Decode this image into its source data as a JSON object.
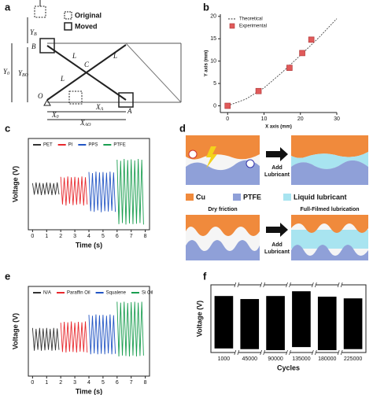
{
  "panel_labels": [
    "a",
    "b",
    "c",
    "d",
    "e",
    "f"
  ],
  "diagram_a": {
    "legend": [
      "Original",
      "Moved"
    ],
    "labels": [
      {
        "text": "Y",
        "sub": "B"
      },
      {
        "text": "B"
      },
      {
        "text": "L"
      },
      {
        "text": "C"
      },
      {
        "text": "L"
      },
      {
        "text": "L"
      },
      {
        "text": "Y",
        "sub": "0"
      },
      {
        "text": "Y",
        "sub": "BO"
      },
      {
        "text": "O"
      },
      {
        "text": "X",
        "sub": "0"
      },
      {
        "text": "X",
        "sub": "A"
      },
      {
        "text": "X",
        "sub": "AO"
      },
      {
        "text": "A"
      }
    ]
  },
  "chart_data": [
    {
      "type": "scatter",
      "x_label": "X axis (mm)",
      "y_label": "Y axis (mm)",
      "xlim": [
        -2,
        30
      ],
      "ylim": [
        -1.5,
        20.5
      ],
      "xticks": [
        0,
        10,
        20,
        30
      ],
      "yticks": [
        0,
        5,
        10,
        15,
        20
      ],
      "legend": "upper left",
      "series": [
        {
          "name": "Theoretical",
          "color": "#333333",
          "line": "dashed",
          "x": [
            0,
            5,
            10,
            15,
            20,
            25,
            30
          ],
          "values": [
            0,
            1.5,
            4,
            7.5,
            11.3,
            15.2,
            19.5
          ]
        },
        {
          "name": "Experimental",
          "color": "#e05a5a",
          "marker": "square",
          "x": [
            0,
            8.5,
            17,
            20.5,
            23
          ],
          "values": [
            0,
            3.3,
            8.5,
            11.8,
            14.8
          ]
        }
      ]
    },
    {
      "type": "line",
      "x_label": "Time (s)",
      "y_label": "Voltage (V)",
      "xlim": [
        -0.3,
        8.3
      ],
      "ylim": [
        -1.1,
        1.35
      ],
      "xticks": [
        0,
        1,
        2,
        3,
        4,
        5,
        6,
        7,
        8
      ],
      "legend": "upper center",
      "series": [
        {
          "name": "PET",
          "color": "#333333",
          "x": [
            0,
            0.125,
            0.25,
            0.375,
            0.5,
            0.625,
            0.75,
            0.875,
            1,
            1.125,
            1.25,
            1.375,
            1.5,
            1.625,
            1.75,
            1.875
          ],
          "values": [
            0.15,
            -0.16,
            0.17,
            -0.15,
            0.16,
            -0.17,
            0.15,
            -0.16,
            0.17,
            -0.15,
            0.16,
            -0.17,
            0.15,
            -0.16,
            0.17,
            -0.15
          ]
        },
        {
          "name": "PI",
          "color": "#e8282d",
          "x": [
            2,
            2.125,
            2.25,
            2.375,
            2.5,
            2.625,
            2.75,
            2.875,
            3,
            3.125,
            3.25,
            3.375,
            3.5,
            3.625,
            3.75,
            3.875
          ],
          "values": [
            0.32,
            -0.42,
            0.3,
            -0.45,
            0.33,
            -0.4,
            0.31,
            -0.44,
            0.32,
            -0.43,
            0.3,
            -0.41,
            0.33,
            -0.45,
            0.31,
            -0.42
          ]
        },
        {
          "name": "PPS",
          "color": "#2255c4",
          "x": [
            4,
            4.125,
            4.25,
            4.375,
            4.5,
            4.625,
            4.75,
            4.875,
            5,
            5.125,
            5.25,
            5.375,
            5.5,
            5.625,
            5.75,
            5.875
          ],
          "values": [
            0.45,
            -0.6,
            0.42,
            -0.62,
            0.46,
            -0.58,
            0.44,
            -0.63,
            0.45,
            -0.6,
            0.43,
            -0.61,
            0.46,
            -0.59,
            0.44,
            -0.62
          ]
        },
        {
          "name": "PTFE",
          "color": "#1a9e50",
          "x": [
            6,
            6.125,
            6.25,
            6.375,
            6.5,
            6.625,
            6.75,
            6.875,
            7,
            7.125,
            7.25,
            7.375,
            7.5,
            7.625,
            7.75,
            7.875
          ],
          "values": [
            0.78,
            -0.95,
            0.75,
            -0.92,
            0.8,
            -0.96,
            0.77,
            -0.93,
            0.79,
            -0.95,
            0.76,
            -0.94,
            0.8,
            -0.92,
            0.78,
            -0.96
          ]
        }
      ]
    },
    {
      "type": "line",
      "x_label": "Time (s)",
      "y_label": "Voltage (V)",
      "xlim": [
        -0.3,
        8.3
      ],
      "ylim": [
        -0.8,
        1.25
      ],
      "xticks": [
        0,
        1,
        2,
        3,
        4,
        5,
        6,
        7,
        8
      ],
      "legend": "upper center",
      "series": [
        {
          "name": "N/A",
          "color": "#333333",
          "x": [
            0,
            0.125,
            0.25,
            0.375,
            0.5,
            0.625,
            0.75,
            0.875,
            1,
            1.125,
            1.25,
            1.375,
            1.5,
            1.625,
            1.75,
            1.875
          ],
          "values": [
            0.3,
            -0.22,
            0.28,
            -0.2,
            0.3,
            -0.22,
            0.29,
            -0.21,
            0.3,
            -0.2,
            0.28,
            -0.22,
            0.3,
            -0.21,
            0.29,
            -0.2
          ]
        },
        {
          "name": "Paraffin Oil",
          "color": "#e8282d",
          "x": [
            2,
            2.125,
            2.25,
            2.375,
            2.5,
            2.625,
            2.75,
            2.875,
            3,
            3.125,
            3.25,
            3.375,
            3.5,
            3.625,
            3.75,
            3.875
          ],
          "values": [
            0.42,
            -0.25,
            0.44,
            -0.26,
            0.43,
            -0.24,
            0.45,
            -0.25,
            0.42,
            -0.26,
            0.44,
            -0.24,
            0.43,
            -0.25,
            0.45,
            -0.26
          ]
        },
        {
          "name": "Squalene",
          "color": "#2255c4",
          "x": [
            4,
            4.125,
            4.25,
            4.375,
            4.5,
            4.625,
            4.75,
            4.875,
            5,
            5.125,
            5.25,
            5.375,
            5.5,
            5.625,
            5.75,
            5.875
          ],
          "values": [
            0.6,
            -0.3,
            0.58,
            -0.28,
            0.61,
            -0.3,
            0.59,
            -0.29,
            0.6,
            -0.3,
            0.58,
            -0.28,
            0.61,
            -0.3,
            0.59,
            -0.29
          ]
        },
        {
          "name": "Si Oil",
          "color": "#1a9e50",
          "x": [
            6,
            6.125,
            6.25,
            6.375,
            6.5,
            6.625,
            6.75,
            6.875,
            7,
            7.125,
            7.25,
            7.375,
            7.5,
            7.625,
            7.75,
            7.875
          ],
          "values": [
            0.9,
            -0.35,
            0.88,
            -0.33,
            0.9,
            -0.34,
            0.87,
            -0.35,
            0.89,
            -0.33,
            0.9,
            -0.35,
            0.88,
            -0.34,
            0.9,
            -0.33
          ]
        }
      ]
    },
    {
      "type": "range",
      "x_label": "Cycles",
      "y_label": "Voltage (V)",
      "ylim": [
        -1,
        1
      ],
      "color": "#000000",
      "categories": [
        "1000",
        "45000",
        "90000",
        "135000",
        "180000",
        "225000"
      ],
      "high": [
        0.67,
        0.58,
        0.67,
        0.81,
        0.65,
        0.6
      ],
      "low": [
        -0.88,
        -0.9,
        -0.93,
        -0.84,
        -0.93,
        -0.9
      ]
    }
  ],
  "diagram_d": {
    "top_arrow": [
      "Add",
      "Lubricant"
    ],
    "legend": [
      "Cu",
      "PTFE",
      "Liquid lubricant"
    ],
    "bottom_left": "Dry friction",
    "bottom_right": "Full-Filmed lubrication",
    "bottom_arrow": [
      "Add",
      "Lubricant"
    ]
  }
}
